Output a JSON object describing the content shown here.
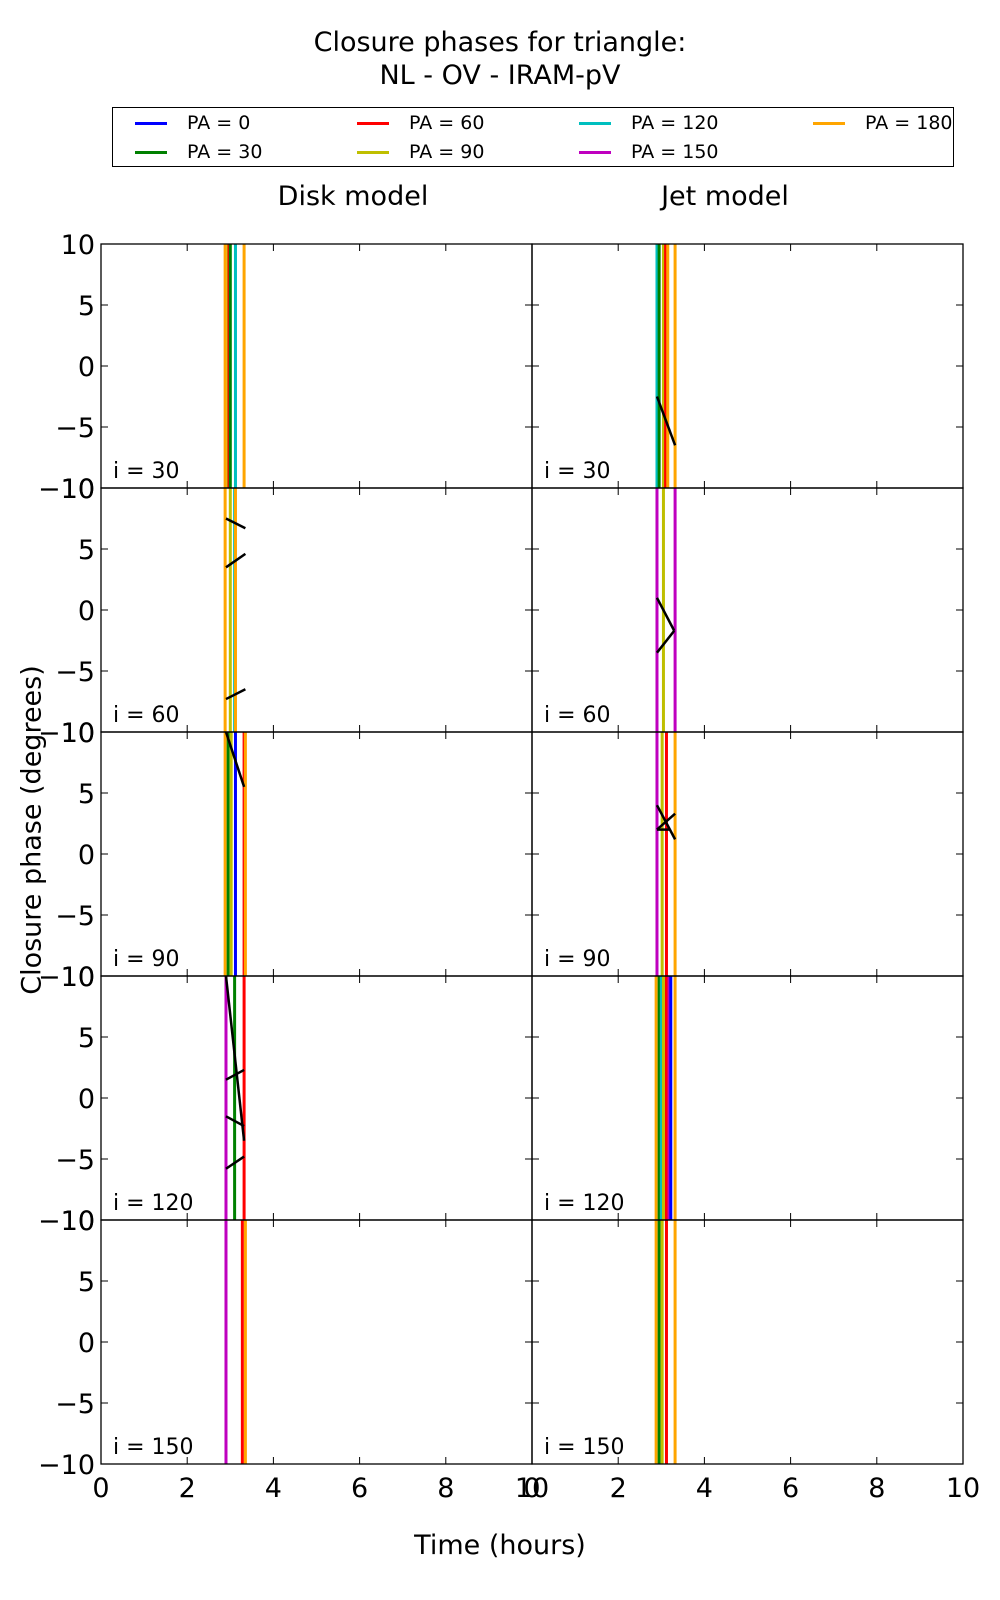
{
  "figure": {
    "title_line1": "Closure phases for triangle:",
    "title_line2": "NL - OV - IRAM-pV",
    "xlabel": "Time (hours)",
    "ylabel": "Closure phase (degrees)"
  },
  "chart_data": {
    "type": "line",
    "title": "Closure phases for triangle: NL - OV - IRAM-pV",
    "xlabel": "Time (hours)",
    "ylabel": "Closure phase (degrees)",
    "xlim": [
      0,
      10
    ],
    "ylim": [
      -10,
      10
    ],
    "xticks": [
      "0",
      "2",
      "4",
      "6",
      "8",
      "10"
    ],
    "yticks": [
      "−10",
      "−5",
      "0",
      "5",
      "10"
    ],
    "legend_position": "top",
    "grid": false,
    "column_titles": [
      "Disk model",
      "Jet model"
    ],
    "row_labels": [
      "i = 30",
      "i = 60",
      "i = 90",
      "i = 120",
      "i = 150"
    ],
    "series": [
      {
        "name": "PA = 0",
        "color": "#0000ff"
      },
      {
        "name": "PA = 30",
        "color": "#008000"
      },
      {
        "name": "PA = 60",
        "color": "#ff0000"
      },
      {
        "name": "PA = 90",
        "color": "#bfbf00"
      },
      {
        "name": "PA = 120",
        "color": "#00bfbf"
      },
      {
        "name": "PA = 150",
        "color": "#bf00bf"
      },
      {
        "name": "PA = 180",
        "color": "#ffa500"
      }
    ],
    "panels": [
      {
        "row": 0,
        "col": 0,
        "vlines": [
          {
            "pa": 180,
            "x": 2.88
          },
          {
            "pa": 90,
            "x": 2.95
          },
          {
            "pa": 60,
            "x": 2.97
          },
          {
            "pa": 30,
            "x": 3.0
          },
          {
            "pa": 120,
            "x": 3.12
          },
          {
            "pa": 180,
            "x": 3.32
          }
        ],
        "segments": []
      },
      {
        "row": 0,
        "col": 1,
        "vlines": [
          {
            "pa": 120,
            "x": 2.9
          },
          {
            "pa": 30,
            "x": 2.95
          },
          {
            "pa": 90,
            "x": 3.05
          },
          {
            "pa": 60,
            "x": 3.1
          },
          {
            "pa": 180,
            "x": 3.15
          },
          {
            "pa": 180,
            "x": 3.32
          }
        ],
        "segments": [
          [
            [
              2.9,
              -2.5
            ],
            [
              3.32,
              -6.5
            ]
          ]
        ]
      },
      {
        "row": 1,
        "col": 0,
        "vlines": [
          {
            "pa": 180,
            "x": 2.88
          },
          {
            "pa": 90,
            "x": 3.0
          },
          {
            "pa": 120,
            "x": 3.1
          },
          {
            "pa": 180,
            "x": 3.12
          }
        ],
        "segments": [
          [
            [
              2.9,
              7.5
            ],
            [
              3.35,
              6.7
            ]
          ],
          [
            [
              2.9,
              3.5
            ],
            [
              3.35,
              4.6
            ]
          ],
          [
            [
              2.9,
              -7.3
            ],
            [
              3.35,
              -6.5
            ]
          ]
        ]
      },
      {
        "row": 1,
        "col": 1,
        "vlines": [
          {
            "pa": 150,
            "x": 2.9
          },
          {
            "pa": 90,
            "x": 3.05
          },
          {
            "pa": 150,
            "x": 3.32
          }
        ],
        "segments": [
          [
            [
              2.9,
              1.0
            ],
            [
              3.3,
              -1.7
            ]
          ],
          [
            [
              2.9,
              -3.5
            ],
            [
              3.3,
              -1.7
            ]
          ]
        ]
      },
      {
        "row": 2,
        "col": 0,
        "vlines": [
          {
            "pa": 180,
            "x": 2.88
          },
          {
            "pa": 30,
            "x": 2.95
          },
          {
            "pa": 90,
            "x": 3.02
          },
          {
            "pa": 0,
            "x": 3.12
          },
          {
            "pa": 60,
            "x": 3.32
          },
          {
            "pa": 180,
            "x": 3.35
          }
        ],
        "segments": [
          [
            [
              2.9,
              10.0
            ],
            [
              3.32,
              5.5
            ]
          ]
        ]
      },
      {
        "row": 2,
        "col": 1,
        "vlines": [
          {
            "pa": 150,
            "x": 2.9
          },
          {
            "pa": 90,
            "x": 3.02
          },
          {
            "pa": 60,
            "x": 3.12
          },
          {
            "pa": 180,
            "x": 3.32
          }
        ],
        "segments": [
          [
            [
              2.9,
              4.0
            ],
            [
              3.32,
              1.2
            ]
          ],
          [
            [
              2.9,
              2.0
            ],
            [
              3.32,
              3.3
            ]
          ],
          [
            [
              2.9,
              2.0
            ],
            [
              3.2,
              2.0
            ]
          ]
        ]
      },
      {
        "row": 3,
        "col": 0,
        "vlines": [
          {
            "pa": 150,
            "x": 2.9
          },
          {
            "pa": 30,
            "x": 3.1
          },
          {
            "pa": 60,
            "x": 3.32
          }
        ],
        "segments": [
          [
            [
              2.9,
              10.0
            ],
            [
              3.32,
              -3.5
            ]
          ],
          [
            [
              2.9,
              1.5
            ],
            [
              3.32,
              2.3
            ]
          ],
          [
            [
              2.9,
              -1.5
            ],
            [
              3.32,
              -2.3
            ]
          ],
          [
            [
              2.9,
              -5.8
            ],
            [
              3.32,
              -4.8
            ]
          ]
        ]
      },
      {
        "row": 3,
        "col": 1,
        "vlines": [
          {
            "pa": 180,
            "x": 2.88
          },
          {
            "pa": 30,
            "x": 2.95
          },
          {
            "pa": 120,
            "x": 3.0
          },
          {
            "pa": 90,
            "x": 3.05
          },
          {
            "pa": 60,
            "x": 3.12
          },
          {
            "pa": 150,
            "x": 3.18
          },
          {
            "pa": 0,
            "x": 3.22
          },
          {
            "pa": 180,
            "x": 3.32
          }
        ],
        "segments": []
      },
      {
        "row": 4,
        "col": 0,
        "vlines": [
          {
            "pa": 150,
            "x": 2.9
          },
          {
            "pa": 60,
            "x": 3.28
          },
          {
            "pa": 180,
            "x": 3.35
          }
        ],
        "segments": []
      },
      {
        "row": 4,
        "col": 1,
        "vlines": [
          {
            "pa": 180,
            "x": 2.88
          },
          {
            "pa": 30,
            "x": 2.95
          },
          {
            "pa": 90,
            "x": 3.02
          },
          {
            "pa": 60,
            "x": 3.12
          },
          {
            "pa": 180,
            "x": 3.32
          }
        ],
        "segments": []
      }
    ]
  }
}
